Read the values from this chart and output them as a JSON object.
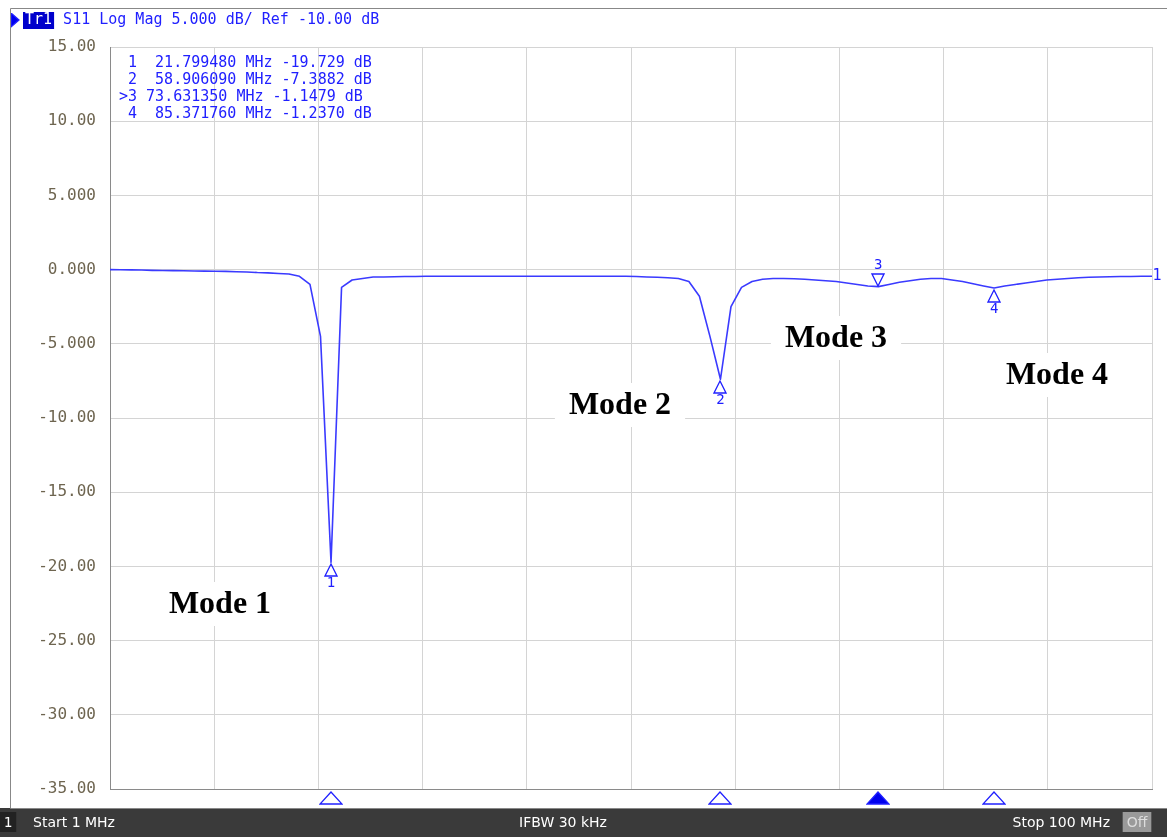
{
  "chart_data": {
    "type": "line",
    "title": "Tr1 S11 Log Mag 5.000 dB/ Ref -10.00 dB",
    "categories": [
      null,
      null,
      null,
      null,
      null,
      null,
      null,
      null,
      null,
      null,
      null,
      null,
      null,
      null,
      null,
      null,
      null,
      null,
      null,
      null,
      null,
      null,
      null,
      null,
      null,
      null,
      null,
      null,
      null,
      null,
      null,
      null,
      null,
      null,
      null,
      null,
      null,
      null,
      null,
      null,
      null,
      null,
      null,
      null,
      null,
      null,
      null,
      null,
      null,
      null,
      null,
      null,
      null,
      null,
      null,
      null,
      null,
      null,
      null,
      null,
      null,
      null,
      null,
      null,
      null,
      null,
      null,
      null,
      null,
      null,
      null,
      null,
      null,
      null,
      null,
      null,
      null,
      null,
      null,
      null,
      null,
      null,
      null,
      null,
      null,
      null,
      null,
      null,
      null,
      null,
      null,
      null,
      null,
      null,
      null,
      null,
      null,
      null,
      null,
      null
    ],
    "series": [
      {
        "color": "#3a3aff",
        "values": [
          0,
          -0.01,
          -0.02,
          -0.03,
          -0.05,
          -0.06,
          -0.07,
          -0.08,
          -0.09,
          -0.1,
          -0.11,
          -0.12,
          -0.14,
          -0.16,
          -0.2,
          -0.22,
          -0.26,
          -0.3,
          -0.45,
          -1,
          -4.5,
          -19.729,
          -1.2,
          -0.7,
          -0.6,
          -0.5,
          -0.5,
          -0.48,
          -0.47,
          -0.46,
          -0.45,
          -0.45,
          -0.45,
          -0.45,
          -0.45,
          -0.45,
          -0.45,
          -0.45,
          -0.45,
          -0.45,
          -0.45,
          -0.45,
          -0.45,
          -0.45,
          -0.45,
          -0.45,
          -0.45,
          -0.45,
          -0.45,
          -0.45,
          -0.47,
          -0.5,
          -0.52,
          -0.55,
          -0.6,
          -0.8,
          -1.8,
          -4.5,
          -7.3882,
          -2.5,
          -1.2,
          -0.8,
          -0.65,
          -0.6,
          -0.6,
          -0.62,
          -0.65,
          -0.7,
          -0.75,
          -0.8,
          -0.9,
          -1,
          -1.1,
          -1.1479,
          -1,
          -0.85,
          -0.75,
          -0.65,
          -0.6,
          -0.6,
          -0.7,
          -0.8,
          -0.95,
          -1.1,
          -1.237,
          -1.1,
          -1,
          -0.9,
          -0.8,
          -0.7,
          -0.65,
          -0.6,
          -0.55,
          -0.52,
          -0.5,
          -0.48,
          -0.47,
          -0.46,
          -0.45,
          -0.45
        ]
      }
    ],
    "ylim": [
      -35,
      15
    ],
    "yticks": [
      {
        "value": 15,
        "label": "15.00"
      },
      {
        "value": 10,
        "label": "10.00"
      },
      {
        "value": 5,
        "label": "5.000"
      },
      {
        "value": 0,
        "label": "0.000"
      },
      {
        "value": -5,
        "label": "-5.000"
      },
      {
        "value": -10,
        "label": "-10.00"
      },
      {
        "value": -15,
        "label": "-15.00"
      },
      {
        "value": -20,
        "label": "-20.00"
      },
      {
        "value": -25,
        "label": "-25.00"
      },
      {
        "value": -30,
        "label": "-30.00"
      },
      {
        "value": -35,
        "label": "-35.00"
      }
    ],
    "tick_labels": "y",
    "grid": true,
    "marker": "none",
    "line_style": "solid",
    "annotations": [
      "1  21.799480 MHz -19.729 dB",
      "2  58.906090 MHz -7.3882 dB",
      ">3 73.631350 MHz -1.1479 dB",
      "4  85.371760 MHz -1.2370 dB",
      "Mode 1",
      "Mode 2",
      "Mode 3",
      "Mode 4",
      "1",
      "1",
      "Start 1 MHz",
      "IFBW 30 kHz",
      "Stop 100 MHz",
      "Off",
      {
        "text": "1",
        "y": -19.729
      },
      {
        "text": "2",
        "y": -7.3882
      },
      {
        "text": "3",
        "y": -1.1479
      },
      {
        "text": "4",
        "y": -1.237
      }
    ]
  }
}
